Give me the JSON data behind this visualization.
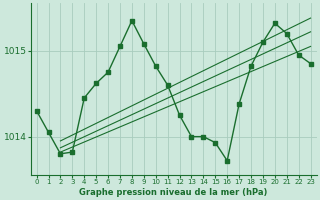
{
  "xlabel_label": "Graphe pression niveau de la mer (hPa)",
  "bg_color": "#cde8dc",
  "grid_color": "#a8ccbe",
  "line_color": "#1a6e2e",
  "markersize": 2.5,
  "linewidth": 1.0,
  "xlim": [
    -0.5,
    23.5
  ],
  "ylim": [
    1013.55,
    1015.55
  ],
  "yticks": [
    1014,
    1015
  ],
  "xticks": [
    0,
    1,
    2,
    3,
    4,
    5,
    6,
    7,
    8,
    9,
    10,
    11,
    12,
    13,
    14,
    15,
    16,
    17,
    18,
    19,
    20,
    21,
    22,
    23
  ],
  "main_x": [
    0,
    1,
    2,
    3,
    4,
    5,
    6,
    7,
    8,
    9,
    10,
    11,
    12,
    13,
    14,
    15,
    16,
    17,
    18,
    19,
    20,
    21,
    22,
    23
  ],
  "main_y": [
    1014.3,
    1014.05,
    1013.8,
    1013.82,
    1014.45,
    1014.62,
    1014.75,
    1015.05,
    1015.35,
    1015.08,
    1014.82,
    1014.6,
    1014.25,
    1014.0,
    1014.0,
    1013.93,
    1013.72,
    1014.38,
    1014.82,
    1015.1,
    1015.32,
    1015.2,
    1014.95,
    1014.85
  ],
  "trend1_x": [
    2,
    23
  ],
  "trend1_y": [
    1013.82,
    1015.05
  ],
  "trend2_x": [
    2,
    23
  ],
  "trend2_y": [
    1013.87,
    1015.22
  ],
  "trend3_x": [
    2,
    23
  ],
  "trend3_y": [
    1013.95,
    1015.38
  ]
}
